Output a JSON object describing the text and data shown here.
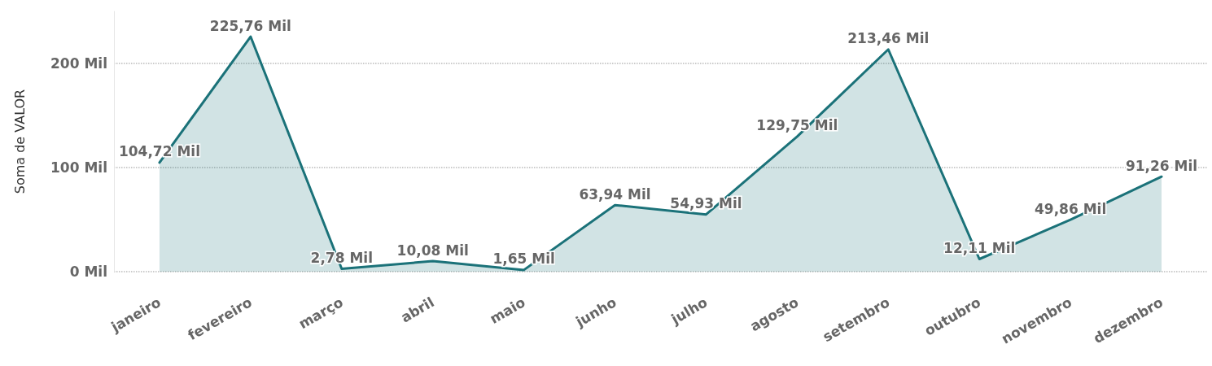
{
  "chart_data": {
    "type": "area",
    "ylabel": "Soma de VALOR",
    "categories": [
      "janeiro",
      "fevereiro",
      "março",
      "abril",
      "maio",
      "junho",
      "julho",
      "agosto",
      "setembro",
      "outubro",
      "novembro",
      "dezembro"
    ],
    "series": [
      {
        "color": "#1b7279",
        "values": [
          104.72,
          225.76,
          2.78,
          10.08,
          1.65,
          63.94,
          54.93,
          129.75,
          213.46,
          12.11,
          49.86,
          91.26
        ],
        "value_labels": [
          "104,72 Mil",
          "225,76 Mil",
          "2,78 Mil",
          "10,08 Mil",
          "1,65 Mil",
          "63,94 Mil",
          "54,93 Mil",
          "129,75 Mil",
          "213,46 Mil",
          "12,11 Mil",
          "49,86 Mil",
          "91,26 Mil"
        ]
      }
    ],
    "ylim": [
      0,
      250
    ],
    "yticks": [
      {
        "value": 0,
        "label": "0 Mil"
      },
      {
        "value": 100,
        "label": "100 Mil"
      },
      {
        "value": 200,
        "label": "200 Mil"
      }
    ],
    "grid": "y",
    "marker": "none",
    "line_style": "solid"
  }
}
